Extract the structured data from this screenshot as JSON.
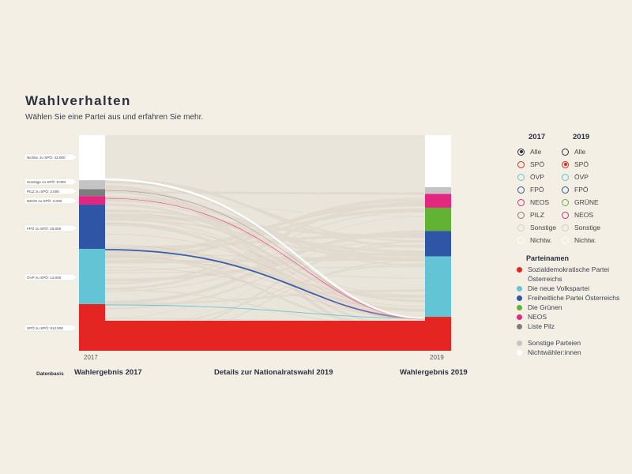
{
  "header": {
    "title": "Wahlverhalten",
    "subtitle": "Wählen Sie eine Partei aus und erfahren Sie mehr."
  },
  "footer": {
    "datenbasis": "Datenbasis",
    "left": "Wahlergebnis 2017",
    "center": "Details zur Nationalratswahl 2019",
    "right": "Wahlergebnis 2019"
  },
  "colors": {
    "SPÖ": "#e42522",
    "ÖVP": "#62c4d4",
    "FPÖ": "#2e55a6",
    "NEOS": "#e3267f",
    "GRÜNE": "#62b234",
    "PILZ": "#7d7d7d",
    "Sonstige": "#c4c4c4",
    "Nichtw.": "#ffffff",
    "flow_default": "#e3ded2"
  },
  "chart_data": {
    "type": "sankey",
    "title": "Wahlverhalten",
    "x_labels": [
      "2017",
      "2019"
    ],
    "selected_2017": "Alle",
    "selected_2019": "SPÖ",
    "stack_2017": [
      "SPÖ",
      "ÖVP",
      "FPÖ",
      "NEOS",
      "PILZ",
      "Sonstige",
      "Nichtw."
    ],
    "stack_2019": [
      "SPÖ",
      "ÖVP",
      "FPÖ",
      "GRÜNE",
      "NEOS",
      "Sonstige",
      "Nichtw."
    ],
    "shares_2017": {
      "SPÖ": 1139,
      "ÖVP": 1348,
      "FPÖ": 1080,
      "NEOS": 207,
      "PILZ": 168,
      "Sonstige": 220,
      "Nichtw.": 1100
    },
    "shares_2019": {
      "SPÖ": 829,
      "ÖVP": 1478,
      "FPÖ": 622,
      "GRÜNE": 565,
      "NEOS": 337,
      "Sonstige": 167,
      "Nichtw.": 1270
    },
    "flow_labels": [
      {
        "party": "Nichtw.",
        "text": "Nichtw. zu SPÖ: 43.000",
        "value": 43000
      },
      {
        "party": "Sonstige",
        "text": "Sonstige zu SPÖ: 9.000",
        "value": 9000
      },
      {
        "party": "PILZ",
        "text": "PILZ zu SPÖ: 2.000",
        "value": 2000
      },
      {
        "party": "NEOS",
        "text": "NEOS zu SPÖ: 3.000",
        "value": 3000
      },
      {
        "party": "FPÖ",
        "text": "FPÖ zu SPÖ: 33.000",
        "value": 33000
      },
      {
        "party": "ÖVP",
        "text": "ÖVP zu SPÖ: 13.000",
        "value": 13000
      },
      {
        "party": "SPÖ",
        "text": "SPÖ zu SPÖ: 912.000",
        "value": 912000
      }
    ]
  },
  "legend": {
    "col_2017": {
      "heading": "2017",
      "items": [
        {
          "label": "Alle",
          "key": "Alle",
          "selected": true
        },
        {
          "label": "SPÖ",
          "key": "SPÖ",
          "selected": false
        },
        {
          "label": "ÖVP",
          "key": "ÖVP",
          "selected": false
        },
        {
          "label": "FPÖ",
          "key": "FPÖ",
          "selected": false
        },
        {
          "label": "NEOS",
          "key": "NEOS",
          "selected": false
        },
        {
          "label": "PILZ",
          "key": "PILZ",
          "selected": false
        },
        {
          "label": "Sonstige",
          "key": "Sonstige",
          "selected": false
        },
        {
          "label": "Nichtw.",
          "key": "Nichtw.",
          "selected": false
        }
      ]
    },
    "col_2019": {
      "heading": "2019",
      "items": [
        {
          "label": "Alle",
          "key": "Alle",
          "selected": false
        },
        {
          "label": "SPÖ",
          "key": "SPÖ",
          "selected": true
        },
        {
          "label": "ÖVP",
          "key": "ÖVP",
          "selected": false
        },
        {
          "label": "FPÖ",
          "key": "FPÖ",
          "selected": false
        },
        {
          "label": "GRÜNE",
          "key": "GRÜNE",
          "selected": false
        },
        {
          "label": "NEOS",
          "key": "NEOS",
          "selected": false
        },
        {
          "label": "Sonstige",
          "key": "Sonstige",
          "selected": false
        },
        {
          "label": "Nichtw.",
          "key": "Nichtw.",
          "selected": false
        }
      ]
    },
    "parteinamen": {
      "heading": "Parteinamen",
      "items": [
        {
          "label": "Sozialdemokratische Partei Österreichs",
          "color": "#e42522"
        },
        {
          "label": "Die neue Volkspartei",
          "color": "#62c4d4"
        },
        {
          "label": "Freiheitliche Partei Österreichs",
          "color": "#2e55a6"
        },
        {
          "label": "Die Grünen",
          "color": "#62b234"
        },
        {
          "label": "NEOS",
          "color": "#e3267f"
        },
        {
          "label": "Liste Pilz",
          "color": "#7d7d7d"
        }
      ],
      "extra": [
        {
          "label": "Sonstige Parteien",
          "color": "#c4c4c4"
        },
        {
          "label": "Nichtwähler:innen",
          "color": "#ffffff"
        }
      ]
    }
  }
}
